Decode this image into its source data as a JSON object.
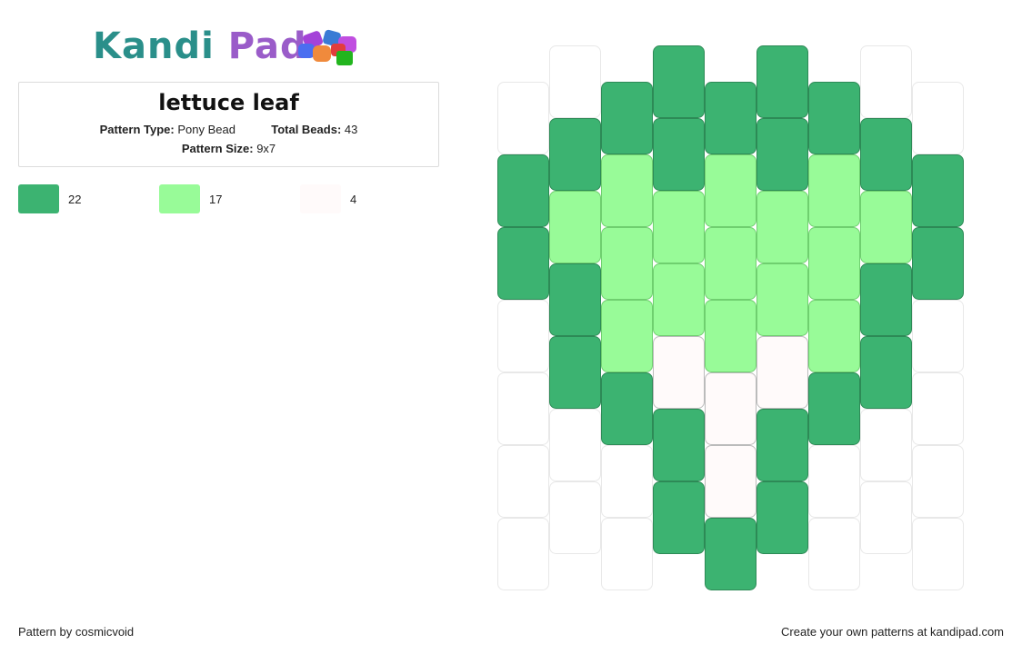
{
  "logo": {
    "part1": "Kandi",
    "part2": "Pad"
  },
  "pattern": {
    "title": "lettuce leaf",
    "type_label": "Pattern Type:",
    "type_value": "Pony Bead",
    "total_label": "Total Beads:",
    "total_value": "43",
    "size_label": "Pattern Size:",
    "size_value": "9x7"
  },
  "legend": [
    {
      "color": "#3cb371",
      "count": "22"
    },
    {
      "color": "#98fb98",
      "count": "17"
    },
    {
      "color": "#fffafa",
      "count": "4"
    }
  ],
  "colors": {
    "dark": "#3cb371",
    "light": "#98fb98",
    "white": "#fffafa",
    "empty": "#ffffff"
  },
  "bead_columns": [
    "...GGAA..",
    ".GGLLLGG.",
    "GLLLLWGG.",
    "GLLLLWWGG",
    "GLLLLWGG.",
    ".GGLLLGG.",
    "...GGAA.."
  ],
  "footer": {
    "left": "Pattern by cosmicvoid",
    "right": "Create your own patterns at kandipad.com"
  }
}
